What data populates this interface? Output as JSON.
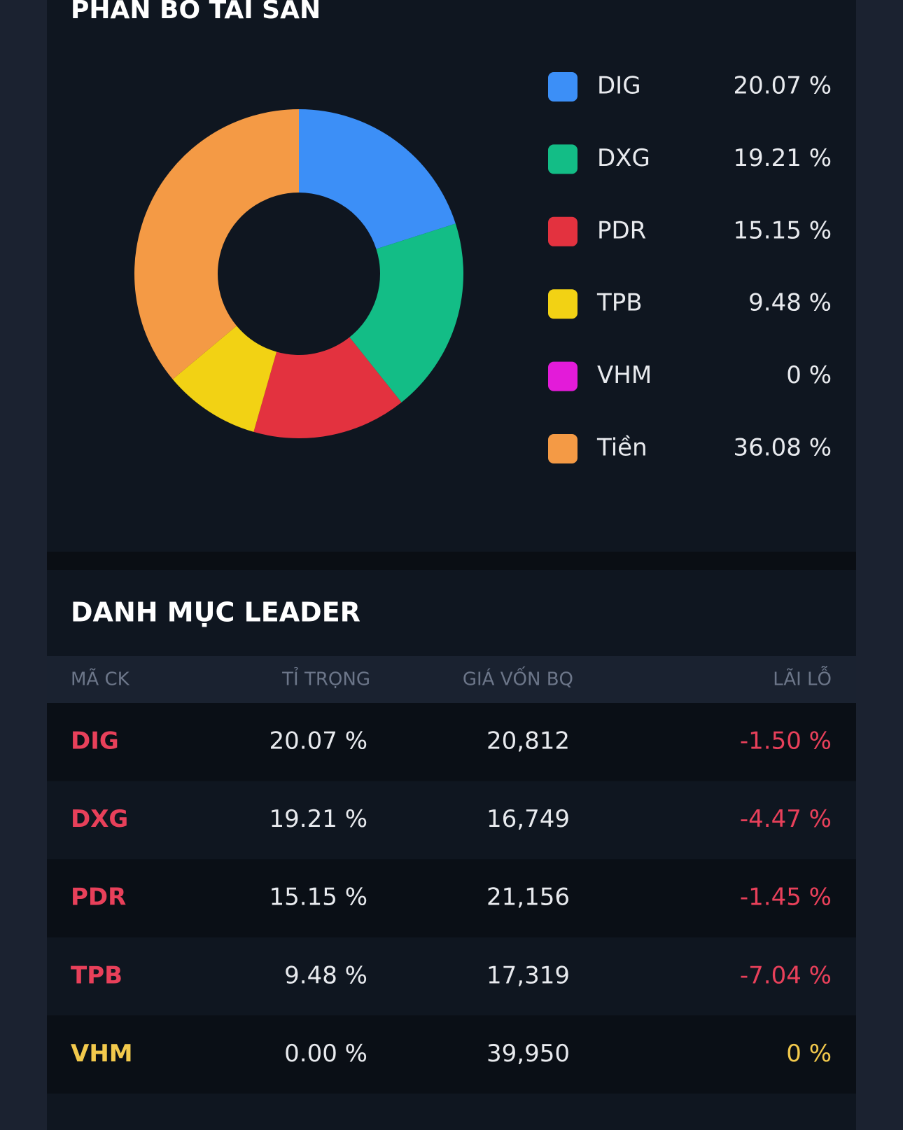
{
  "chart_data": {
    "type": "pie",
    "title": "PHÂN BỔ TÀI SẢN",
    "categories": [
      "DIG",
      "DXG",
      "PDR",
      "TPB",
      "VHM",
      "Tiền"
    ],
    "values": [
      20.07,
      19.21,
      15.15,
      9.48,
      0,
      36.08
    ],
    "value_labels": [
      "20.07 %",
      "19.21 %",
      "15.15 %",
      "9.48 %",
      "0 %",
      "36.08 %"
    ],
    "colors": [
      "#3c8ff7",
      "#13bd86",
      "#e3323f",
      "#f2d214",
      "#e31bd9",
      "#f49a45"
    ],
    "legend": "right"
  },
  "table": {
    "title": "DANH MỤC LEADER",
    "columns": [
      "MÃ CK",
      "TỈ TRỌNG",
      "GIÁ VỐN BQ",
      "LÃI LỖ"
    ],
    "rows": [
      [
        "DIG",
        "20.07 %",
        "20,812",
        "-1.50 %"
      ],
      [
        "DXG",
        "19.21 %",
        "16,749",
        "-4.47 %"
      ],
      [
        "PDR",
        "15.15 %",
        "21,156",
        "-1.45 %"
      ],
      [
        "TPB",
        "9.48 %",
        "17,319",
        "-7.04 %"
      ],
      [
        "VHM",
        "0.00 %",
        "39,950",
        "0 %"
      ]
    ]
  }
}
